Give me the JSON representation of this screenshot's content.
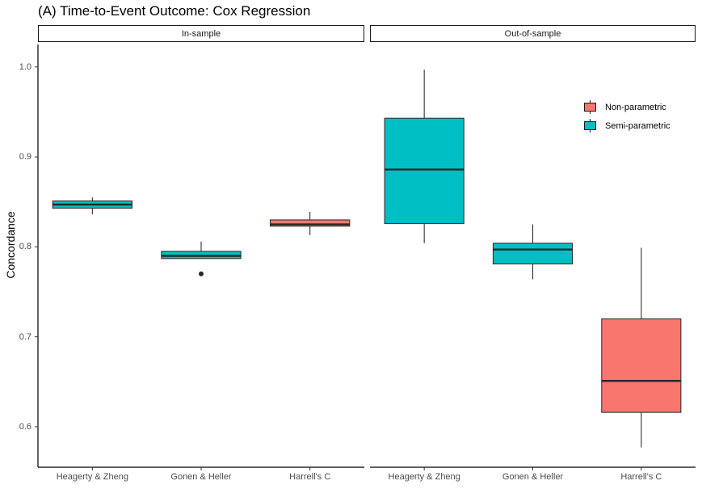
{
  "chart_data": {
    "type": "boxplot",
    "title": "(A) Time-to-Event Outcome: Cox Regression",
    "ylabel": "Concordance",
    "xlabel": "",
    "ylim": [
      0.555,
      1.025
    ],
    "yticks": [
      0.6,
      0.7,
      0.8,
      0.9,
      1.0
    ],
    "ytick_labels": [
      "0.6",
      "0.7",
      "0.8",
      "0.9",
      "1.0"
    ],
    "categories": [
      "Heagerty & Zheng",
      "Gonen & Heller",
      "Harrell's C"
    ],
    "legend": [
      {
        "name": "Non-parametric",
        "color": "#F8766D"
      },
      {
        "name": "Semi-parametric",
        "color": "#00BFC4"
      }
    ],
    "legend_position": "top-right",
    "panels": [
      {
        "label": "In-sample",
        "boxes": [
          {
            "category": "Heagerty & Zheng",
            "group": "Semi-parametric",
            "whisker_low": 0.836,
            "q1": 0.843,
            "median": 0.847,
            "q3": 0.851,
            "whisker_high": 0.855,
            "outliers": []
          },
          {
            "category": "Gonen & Heller",
            "group": "Semi-parametric",
            "whisker_low": 0.787,
            "q1": 0.787,
            "median": 0.79,
            "q3": 0.795,
            "whisker_high": 0.806,
            "outliers": [
              0.77
            ]
          },
          {
            "category": "Harrell's C",
            "group": "Non-parametric",
            "whisker_low": 0.813,
            "q1": 0.823,
            "median": 0.825,
            "q3": 0.83,
            "whisker_high": 0.839,
            "outliers": []
          }
        ]
      },
      {
        "label": "Out-of-sample",
        "boxes": [
          {
            "category": "Heagerty & Zheng",
            "group": "Semi-parametric",
            "whisker_low": 0.804,
            "q1": 0.826,
            "median": 0.886,
            "q3": 0.943,
            "whisker_high": 0.997,
            "outliers": []
          },
          {
            "category": "Gonen & Heller",
            "group": "Semi-parametric",
            "whisker_low": 0.764,
            "q1": 0.781,
            "median": 0.797,
            "q3": 0.804,
            "whisker_high": 0.825,
            "outliers": []
          },
          {
            "category": "Harrell's C",
            "group": "Non-parametric",
            "whisker_low": 0.577,
            "q1": 0.616,
            "median": 0.651,
            "q3": 0.72,
            "whisker_high": 0.799,
            "outliers": []
          }
        ]
      }
    ]
  }
}
